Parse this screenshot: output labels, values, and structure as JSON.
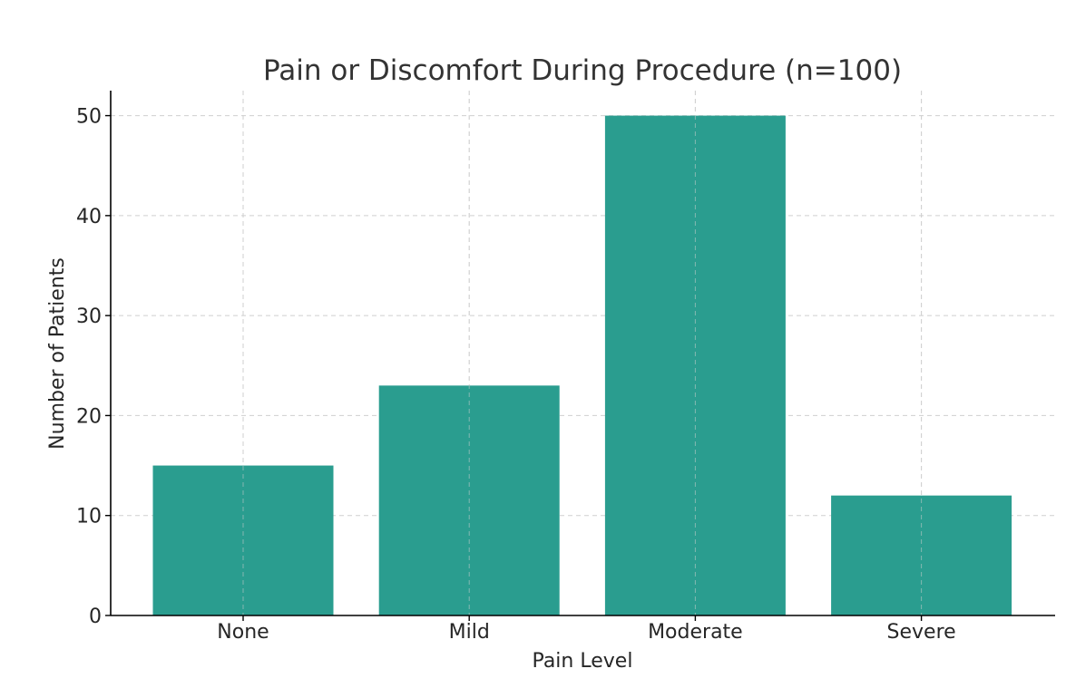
{
  "chart_data": {
    "type": "bar",
    "title": "Pain or Discomfort During Procedure (n=100)",
    "xlabel": "Pain Level",
    "ylabel": "Number of Patients",
    "categories": [
      "None",
      "Mild",
      "Moderate",
      "Severe"
    ],
    "values": [
      15,
      23,
      50,
      12
    ],
    "ylim": [
      0,
      52.5
    ],
    "yticks": [
      0,
      10,
      20,
      30,
      40,
      50
    ],
    "grid": true,
    "legend": "none",
    "bar_color": "#2a9d8f"
  }
}
